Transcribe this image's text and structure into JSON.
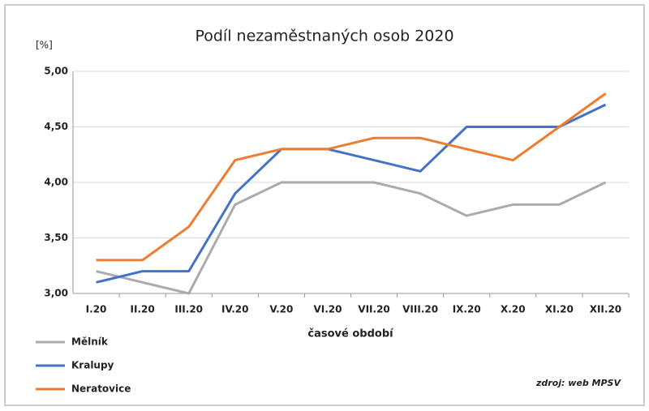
{
  "chart_data": {
    "type": "line",
    "title": "Podíl nezaměstnaných osob 2020",
    "y_label": "[%]",
    "x_label": "časové období",
    "source": "zdroj: web MPSV",
    "categories": [
      "I.20",
      "II.20",
      "III.20",
      "IV.20",
      "V.20",
      "VI.20",
      "VII.20",
      "VIII.20",
      "IX.20",
      "X.20",
      "XI.20",
      "XII.20"
    ],
    "series": [
      {
        "name": "Mělník",
        "color": "#aeaaaa",
        "values": [
          3.2,
          3.1,
          3.0,
          3.8,
          4.0,
          4.0,
          4.0,
          3.9,
          3.7,
          3.8,
          3.8,
          4.0
        ]
      },
      {
        "name": "Kralupy",
        "color": "#4472c4",
        "values": [
          3.1,
          3.2,
          3.2,
          3.9,
          4.3,
          4.3,
          4.2,
          4.1,
          4.5,
          4.5,
          4.5,
          4.7
        ]
      },
      {
        "name": "Neratovice",
        "color": "#ed7d31",
        "values": [
          3.3,
          3.3,
          3.6,
          4.2,
          4.3,
          4.3,
          4.4,
          4.4,
          4.3,
          4.2,
          4.5,
          4.8
        ]
      }
    ],
    "ylim": [
      3.0,
      5.0
    ],
    "yticks": [
      {
        "value": 3.0,
        "label": "3,00"
      },
      {
        "value": 3.5,
        "label": "3,50"
      },
      {
        "value": 4.0,
        "label": "4,00"
      },
      {
        "value": 4.5,
        "label": "4,50"
      },
      {
        "value": 5.0,
        "label": "5,00"
      }
    ],
    "grid": true
  }
}
